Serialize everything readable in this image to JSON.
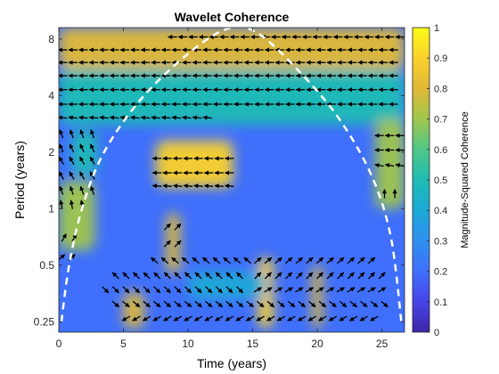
{
  "chart_data": {
    "type": "heatmap",
    "title": "Wavelet Coherence",
    "xlabel": "Time (years)",
    "ylabel": "Period (years)",
    "xlim": [
      0,
      26.75
    ],
    "ylim": [
      0.22,
      9.2
    ],
    "y_scale": "log2",
    "x_ticks": [
      0,
      5,
      10,
      15,
      20,
      25
    ],
    "x_tick_labels": [
      "0",
      "5",
      "10",
      "15",
      "20",
      "25"
    ],
    "y_ticks": [
      0.25,
      0.5,
      1,
      2,
      4,
      8
    ],
    "y_tick_labels": [
      "0.25",
      "0.5",
      "1",
      "2",
      "4",
      "8"
    ],
    "colorbar": {
      "label": "Magnitude-Squared Coherence",
      "range": [
        0,
        1
      ],
      "ticks": [
        0,
        0.1,
        0.2,
        0.3,
        0.4,
        0.5,
        0.6,
        0.7,
        0.8,
        0.9,
        1
      ],
      "tick_labels": [
        "0",
        "0.1",
        "0.2",
        "0.3",
        "0.4",
        "0.5",
        "0.6",
        "0.7",
        "0.8",
        "0.9",
        "1"
      ],
      "colors": [
        "#3e26a8",
        "#4744e8",
        "#3f6ffb",
        "#2e90f0",
        "#1ba9d6",
        "#1ebcb4",
        "#50c786",
        "#a0c64d",
        "#e0b935",
        "#fbd12d",
        "#f9fb15"
      ]
    },
    "cone_of_influence": {
      "style": "dashed",
      "color": "#ffffff",
      "points": [
        [
          0.2,
          0.25
        ],
        [
          0.8,
          0.5
        ],
        [
          1.8,
          1
        ],
        [
          3.5,
          2
        ],
        [
          6.6,
          4
        ],
        [
          10.6,
          7.2
        ],
        [
          13.4,
          9.2
        ],
        [
          15.6,
          8.4
        ],
        [
          18.8,
          5.2
        ],
        [
          21.7,
          3
        ],
        [
          24.2,
          1.5
        ],
        [
          25.7,
          0.7
        ],
        [
          26.5,
          0.25
        ]
      ]
    },
    "coherence_regions": [
      {
        "x": [
          0,
          26.75
        ],
        "y": [
          5.5,
          9.2
        ],
        "value": 0.82
      },
      {
        "x": [
          0,
          26.75
        ],
        "y": [
          2.8,
          5.5
        ],
        "value": 0.5
      },
      {
        "x": [
          7.5,
          13.5
        ],
        "y": [
          1.3,
          2.3
        ],
        "value": 0.9
      },
      {
        "x": [
          0,
          2.8
        ],
        "y": [
          0.6,
          1.4
        ],
        "value": 0.68
      },
      {
        "x": [
          24.5,
          26.75
        ],
        "y": [
          1.0,
          3.0
        ],
        "value": 0.7
      },
      {
        "x": [
          15.4,
          16.6
        ],
        "y": [
          0.23,
          0.55
        ],
        "value": 0.85
      },
      {
        "x": [
          19.6,
          20.4
        ],
        "y": [
          0.23,
          0.5
        ],
        "value": 0.8
      },
      {
        "x": [
          8.3,
          9.4
        ],
        "y": [
          0.45,
          0.95
        ],
        "value": 0.75
      },
      {
        "x": [
          5.0,
          6.6
        ],
        "y": [
          0.23,
          0.36
        ],
        "value": 0.8
      },
      {
        "x": [
          1.0,
          3.0
        ],
        "y": [
          1.5,
          2.6
        ],
        "value": 0.45
      },
      {
        "x": [
          10.0,
          16.0
        ],
        "y": [
          0.33,
          0.46
        ],
        "value": 0.35
      }
    ],
    "phase_arrow_rows": [
      {
        "period": 8.2,
        "x_start": 8.8,
        "x_end": 26.5,
        "step": 0.8,
        "angle_deg": 180
      },
      {
        "period": 7.0,
        "x_start": 0.3,
        "x_end": 26.5,
        "step": 0.8,
        "angle_deg": 180
      },
      {
        "period": 6.0,
        "x_start": 0.3,
        "x_end": 26.5,
        "step": 0.8,
        "angle_deg": 180
      },
      {
        "period": 5.1,
        "x_start": 0.3,
        "x_end": 26.5,
        "step": 0.8,
        "angle_deg": 180
      },
      {
        "period": 4.3,
        "x_start": 0.3,
        "x_end": 26.5,
        "step": 0.8,
        "angle_deg": 180
      },
      {
        "period": 3.6,
        "x_start": 0.3,
        "x_end": 26.5,
        "step": 0.8,
        "angle_deg": 180
      },
      {
        "period": 3.05,
        "x_start": 0.3,
        "x_end": 11.5,
        "step": 0.8,
        "angle_deg": 175
      },
      {
        "period": 2.5,
        "x_start": 0.2,
        "x_end": 2.6,
        "step": 0.8,
        "angle_deg": 110
      },
      {
        "period": 2.1,
        "x_start": 0.2,
        "x_end": 2.6,
        "step": 0.8,
        "angle_deg": 115
      },
      {
        "period": 1.8,
        "x_start": 0.2,
        "x_end": 2.6,
        "step": 0.8,
        "angle_deg": 120
      },
      {
        "period": 1.5,
        "x_start": 0.2,
        "x_end": 2.6,
        "step": 0.8,
        "angle_deg": 120
      },
      {
        "period": 1.25,
        "x_start": 0.2,
        "x_end": 2.6,
        "step": 0.8,
        "angle_deg": 110
      },
      {
        "period": 1.05,
        "x_start": 0.2,
        "x_end": 2.0,
        "step": 0.8,
        "angle_deg": 100
      },
      {
        "period": 1.85,
        "x_start": 7.6,
        "x_end": 13.2,
        "step": 0.8,
        "angle_deg": 180
      },
      {
        "period": 1.55,
        "x_start": 7.6,
        "x_end": 13.2,
        "step": 0.8,
        "angle_deg": 180
      },
      {
        "period": 1.32,
        "x_start": 7.6,
        "x_end": 13.2,
        "step": 0.8,
        "angle_deg": 175
      },
      {
        "period": 2.45,
        "x_start": 24.8,
        "x_end": 26.5,
        "step": 0.8,
        "angle_deg": 180
      },
      {
        "period": 2.05,
        "x_start": 24.8,
        "x_end": 26.5,
        "step": 0.8,
        "angle_deg": 180
      },
      {
        "period": 1.7,
        "x_start": 24.8,
        "x_end": 26.5,
        "step": 0.8,
        "angle_deg": 170
      },
      {
        "period": 1.2,
        "x_start": 25.2,
        "x_end": 26.5,
        "step": 0.8,
        "angle_deg": 90
      },
      {
        "period": 0.8,
        "x_start": 8.4,
        "x_end": 9.4,
        "step": 0.8,
        "angle_deg": 45
      },
      {
        "period": 0.65,
        "x_start": 8.4,
        "x_end": 9.4,
        "step": 0.8,
        "angle_deg": 45
      },
      {
        "period": 0.55,
        "x_start": 0.2,
        "x_end": 1.2,
        "step": 0.8,
        "angle_deg": 40
      },
      {
        "period": 0.7,
        "x_start": 0.4,
        "x_end": 1.4,
        "step": 0.8,
        "angle_deg": 60
      },
      {
        "period": 0.53,
        "x_start": 7.4,
        "x_end": 14.6,
        "step": 0.8,
        "angle_deg": 140
      },
      {
        "period": 0.53,
        "x_start": 15.4,
        "x_end": 24.6,
        "step": 0.8,
        "angle_deg": 40
      },
      {
        "period": 0.44,
        "x_start": 4.4,
        "x_end": 14.6,
        "step": 0.8,
        "angle_deg": 135
      },
      {
        "period": 0.44,
        "x_start": 15.4,
        "x_end": 25.4,
        "step": 0.8,
        "angle_deg": 45
      },
      {
        "period": 0.37,
        "x_start": 3.6,
        "x_end": 14.6,
        "step": 0.8,
        "angle_deg": 315
      },
      {
        "period": 0.37,
        "x_start": 15.4,
        "x_end": 25.4,
        "step": 0.8,
        "angle_deg": 30
      },
      {
        "period": 0.31,
        "x_start": 4.4,
        "x_end": 25.4,
        "step": 0.8,
        "angle_deg": 320
      },
      {
        "period": 0.26,
        "x_start": 5.2,
        "x_end": 24.6,
        "step": 0.8,
        "angle_deg": 210
      }
    ]
  }
}
